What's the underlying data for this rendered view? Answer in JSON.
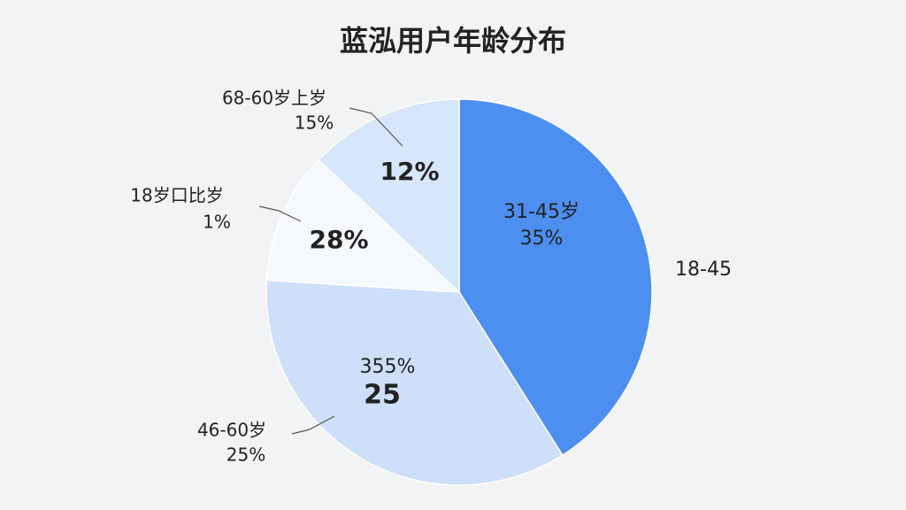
{
  "chart_data": {
    "type": "pie",
    "title": "蓝泓用户年龄分布",
    "categories": [
      "31-45岁",
      "46-60岁",
      "18岁口比岁",
      "68-60岁上岁"
    ],
    "values": [
      41,
      35,
      11,
      13
    ],
    "colors": [
      "#4d8ff0",
      "#cddff9",
      "#f5f8fd",
      "#d6e6fb"
    ],
    "annotations": [
      "35%",
      "18-45",
      "355%",
      "25",
      "25%",
      "28%",
      "1%",
      "12%",
      "15%"
    ]
  }
}
